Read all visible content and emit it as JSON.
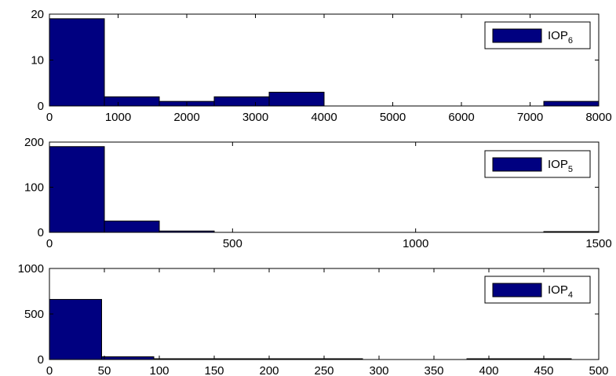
{
  "chart_data": [
    {
      "type": "bar",
      "subtype": "histogram",
      "bar_color": "#000080",
      "legend": {
        "base": "IOP",
        "subscript": "6",
        "position": "top-right"
      },
      "xlim": [
        0,
        8000
      ],
      "ylim": [
        0,
        20
      ],
      "xticks": [
        0,
        1000,
        2000,
        3000,
        4000,
        5000,
        6000,
        7000,
        8000
      ],
      "yticks": [
        0,
        10,
        20
      ],
      "bins": [
        {
          "x0": 0,
          "x1": 800,
          "count": 19
        },
        {
          "x0": 800,
          "x1": 1600,
          "count": 2
        },
        {
          "x0": 1600,
          "x1": 2400,
          "count": 1
        },
        {
          "x0": 2400,
          "x1": 3200,
          "count": 2
        },
        {
          "x0": 3200,
          "x1": 4000,
          "count": 3
        },
        {
          "x0": 4000,
          "x1": 4800,
          "count": 0
        },
        {
          "x0": 4800,
          "x1": 5600,
          "count": 0
        },
        {
          "x0": 5600,
          "x1": 6400,
          "count": 0
        },
        {
          "x0": 6400,
          "x1": 7200,
          "count": 0
        },
        {
          "x0": 7200,
          "x1": 8000,
          "count": 1
        }
      ]
    },
    {
      "type": "bar",
      "subtype": "histogram",
      "bar_color": "#000080",
      "legend": {
        "base": "IOP",
        "subscript": "5",
        "position": "top-right"
      },
      "xlim": [
        0,
        1500
      ],
      "ylim": [
        0,
        200
      ],
      "xticks": [
        0,
        500,
        1000,
        1500
      ],
      "yticks": [
        0,
        100,
        200
      ],
      "bins": [
        {
          "x0": 0,
          "x1": 150,
          "count": 190
        },
        {
          "x0": 150,
          "x1": 300,
          "count": 25
        },
        {
          "x0": 300,
          "x1": 450,
          "count": 3
        },
        {
          "x0": 450,
          "x1": 600,
          "count": 0
        },
        {
          "x0": 600,
          "x1": 750,
          "count": 0
        },
        {
          "x0": 750,
          "x1": 900,
          "count": 0
        },
        {
          "x0": 900,
          "x1": 1050,
          "count": 0
        },
        {
          "x0": 1050,
          "x1": 1200,
          "count": 0
        },
        {
          "x0": 1200,
          "x1": 1350,
          "count": 0
        },
        {
          "x0": 1350,
          "x1": 1500,
          "count": 1
        }
      ]
    },
    {
      "type": "bar",
      "subtype": "histogram",
      "bar_color": "#000080",
      "legend": {
        "base": "IOP",
        "subscript": "4",
        "position": "top-right"
      },
      "xlim": [
        0,
        500
      ],
      "ylim": [
        0,
        1000
      ],
      "xticks": [
        0,
        50,
        100,
        150,
        200,
        250,
        300,
        350,
        400,
        450,
        500
      ],
      "yticks": [
        0,
        500,
        1000
      ],
      "bins": [
        {
          "x0": 0,
          "x1": 47.5,
          "count": 660
        },
        {
          "x0": 47.5,
          "x1": 95,
          "count": 30
        },
        {
          "x0": 95,
          "x1": 142.5,
          "count": 5
        },
        {
          "x0": 142.5,
          "x1": 190,
          "count": 3
        },
        {
          "x0": 190,
          "x1": 237.5,
          "count": 2
        },
        {
          "x0": 237.5,
          "x1": 285,
          "count": 1
        },
        {
          "x0": 285,
          "x1": 332.5,
          "count": 0
        },
        {
          "x0": 332.5,
          "x1": 380,
          "count": 0
        },
        {
          "x0": 380,
          "x1": 427.5,
          "count": 1
        },
        {
          "x0": 427.5,
          "x1": 475,
          "count": 1
        }
      ]
    }
  ]
}
